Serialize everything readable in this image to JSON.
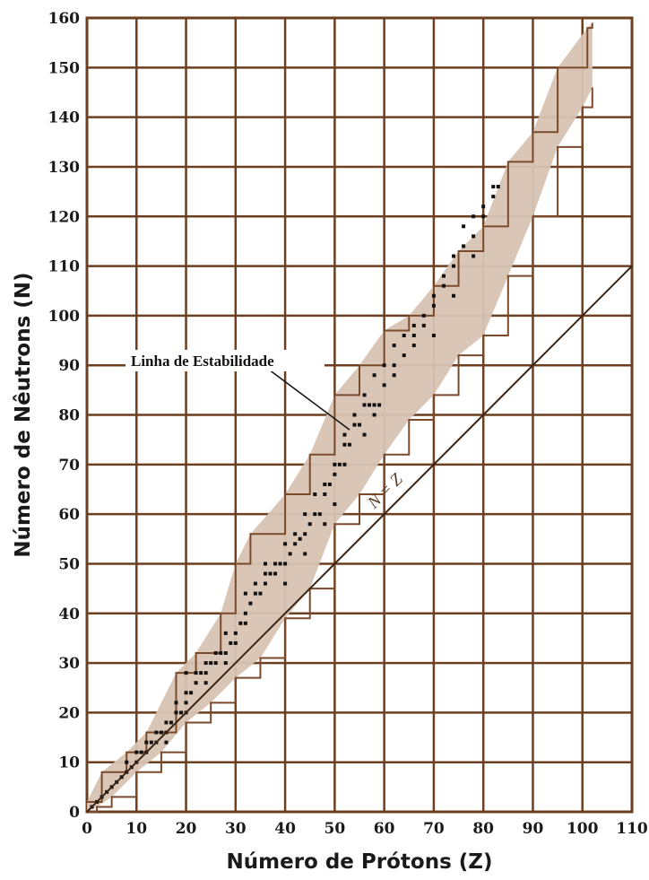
{
  "chart_data": {
    "type": "scatter",
    "xlabel": "Número de Prótons (Z)",
    "ylabel": "Número de Nêutrons (N)",
    "xlim": [
      0,
      110
    ],
    "ylim": [
      0,
      160
    ],
    "x_ticks": [
      0,
      10,
      20,
      30,
      40,
      50,
      60,
      70,
      80,
      90,
      100,
      110
    ],
    "y_ticks": [
      0,
      10,
      20,
      30,
      40,
      50,
      60,
      70,
      80,
      90,
      100,
      110,
      120,
      130,
      140,
      150,
      160
    ],
    "grid": true,
    "colors": {
      "grid": "#6b3f1f",
      "band_fill": "#d8c3b3",
      "band_edge": "#7a4a2a",
      "points": "#111111"
    },
    "belt_of_stability": {
      "lower": [
        [
          0,
          0
        ],
        [
          2,
          1
        ],
        [
          5,
          3
        ],
        [
          10,
          8
        ],
        [
          15,
          12
        ],
        [
          20,
          18
        ],
        [
          25,
          22
        ],
        [
          30,
          27
        ],
        [
          35,
          31
        ],
        [
          40,
          39
        ],
        [
          45,
          45
        ],
        [
          50,
          58
        ],
        [
          55,
          64
        ],
        [
          60,
          72
        ],
        [
          65,
          79
        ],
        [
          70,
          84
        ],
        [
          75,
          92
        ],
        [
          80,
          96
        ],
        [
          85,
          108
        ],
        [
          90,
          120
        ],
        [
          95,
          134
        ],
        [
          100,
          142
        ],
        [
          102,
          146
        ]
      ],
      "upper": [
        [
          0,
          2
        ],
        [
          3,
          8
        ],
        [
          8,
          12
        ],
        [
          12,
          16
        ],
        [
          18,
          28
        ],
        [
          22,
          32
        ],
        [
          27,
          40
        ],
        [
          30,
          50
        ],
        [
          33,
          56
        ],
        [
          40,
          64
        ],
        [
          45,
          72
        ],
        [
          50,
          84
        ],
        [
          55,
          90
        ],
        [
          60,
          97
        ],
        [
          65,
          100
        ],
        [
          70,
          106
        ],
        [
          75,
          113
        ],
        [
          80,
          118
        ],
        [
          85,
          131
        ],
        [
          90,
          137
        ],
        [
          95,
          150
        ],
        [
          101,
          158
        ],
        [
          102,
          159
        ]
      ]
    },
    "stable_nuclides": [
      [
        1,
        1
      ],
      [
        2,
        2
      ],
      [
        3,
        3
      ],
      [
        4,
        4
      ],
      [
        5,
        5
      ],
      [
        6,
        6
      ],
      [
        7,
        7
      ],
      [
        8,
        8
      ],
      [
        9,
        9
      ],
      [
        10,
        10
      ],
      [
        11,
        12
      ],
      [
        12,
        12
      ],
      [
        13,
        14
      ],
      [
        14,
        14
      ],
      [
        15,
        16
      ],
      [
        16,
        16
      ],
      [
        17,
        18
      ],
      [
        18,
        20
      ],
      [
        19,
        20
      ],
      [
        20,
        20
      ],
      [
        21,
        24
      ],
      [
        22,
        26
      ],
      [
        23,
        28
      ],
      [
        24,
        28
      ],
      [
        25,
        30
      ],
      [
        26,
        30
      ],
      [
        27,
        32
      ],
      [
        28,
        30
      ],
      [
        29,
        34
      ],
      [
        30,
        34
      ],
      [
        31,
        38
      ],
      [
        32,
        40
      ],
      [
        33,
        42
      ],
      [
        34,
        44
      ],
      [
        35,
        44
      ],
      [
        36,
        48
      ],
      [
        37,
        48
      ],
      [
        38,
        50
      ],
      [
        39,
        50
      ],
      [
        40,
        50
      ],
      [
        41,
        52
      ],
      [
        42,
        54
      ],
      [
        43,
        55
      ],
      [
        44,
        56
      ],
      [
        45,
        58
      ],
      [
        46,
        60
      ],
      [
        47,
        60
      ],
      [
        48,
        64
      ],
      [
        49,
        66
      ],
      [
        50,
        68
      ],
      [
        51,
        70
      ],
      [
        52,
        74
      ],
      [
        53,
        74
      ],
      [
        54,
        78
      ],
      [
        55,
        78
      ],
      [
        56,
        82
      ],
      [
        57,
        82
      ],
      [
        58,
        82
      ],
      [
        59,
        82
      ],
      [
        60,
        86
      ],
      [
        62,
        88
      ],
      [
        64,
        92
      ],
      [
        66,
        96
      ],
      [
        68,
        98
      ],
      [
        70,
        104
      ],
      [
        72,
        106
      ],
      [
        74,
        110
      ],
      [
        76,
        114
      ],
      [
        78,
        116
      ],
      [
        80,
        120
      ],
      [
        82,
        124
      ],
      [
        83,
        126
      ],
      [
        10,
        12
      ],
      [
        12,
        14
      ],
      [
        14,
        16
      ],
      [
        16,
        18
      ],
      [
        18,
        22
      ],
      [
        20,
        24
      ],
      [
        20,
        28
      ],
      [
        22,
        28
      ],
      [
        24,
        30
      ],
      [
        26,
        32
      ],
      [
        28,
        36
      ],
      [
        30,
        36
      ],
      [
        32,
        44
      ],
      [
        34,
        46
      ],
      [
        36,
        50
      ],
      [
        38,
        48
      ],
      [
        40,
        54
      ],
      [
        42,
        56
      ],
      [
        44,
        60
      ],
      [
        46,
        64
      ],
      [
        48,
        66
      ],
      [
        50,
        70
      ],
      [
        52,
        76
      ],
      [
        54,
        80
      ],
      [
        56,
        84
      ],
      [
        58,
        88
      ],
      [
        60,
        90
      ],
      [
        62,
        94
      ],
      [
        64,
        96
      ],
      [
        66,
        98
      ],
      [
        68,
        100
      ],
      [
        70,
        102
      ],
      [
        72,
        108
      ],
      [
        74,
        112
      ],
      [
        76,
        118
      ],
      [
        78,
        120
      ],
      [
        80,
        122
      ],
      [
        82,
        126
      ],
      [
        8,
        10
      ],
      [
        16,
        14
      ],
      [
        20,
        22
      ],
      [
        24,
        26
      ],
      [
        28,
        32
      ],
      [
        32,
        38
      ],
      [
        36,
        46
      ],
      [
        40,
        46
      ],
      [
        44,
        52
      ],
      [
        48,
        58
      ],
      [
        50,
        62
      ],
      [
        52,
        70
      ],
      [
        56,
        76
      ],
      [
        58,
        80
      ],
      [
        62,
        90
      ],
      [
        66,
        94
      ],
      [
        70,
        96
      ],
      [
        74,
        104
      ],
      [
        78,
        112
      ]
    ],
    "annotations": {
      "stability_line": "Linha de Estabilidade",
      "n_equals_z": "N = Z"
    },
    "reference_line": {
      "label": "N = Z",
      "from": [
        0,
        0
      ],
      "to": [
        110,
        110
      ]
    }
  }
}
